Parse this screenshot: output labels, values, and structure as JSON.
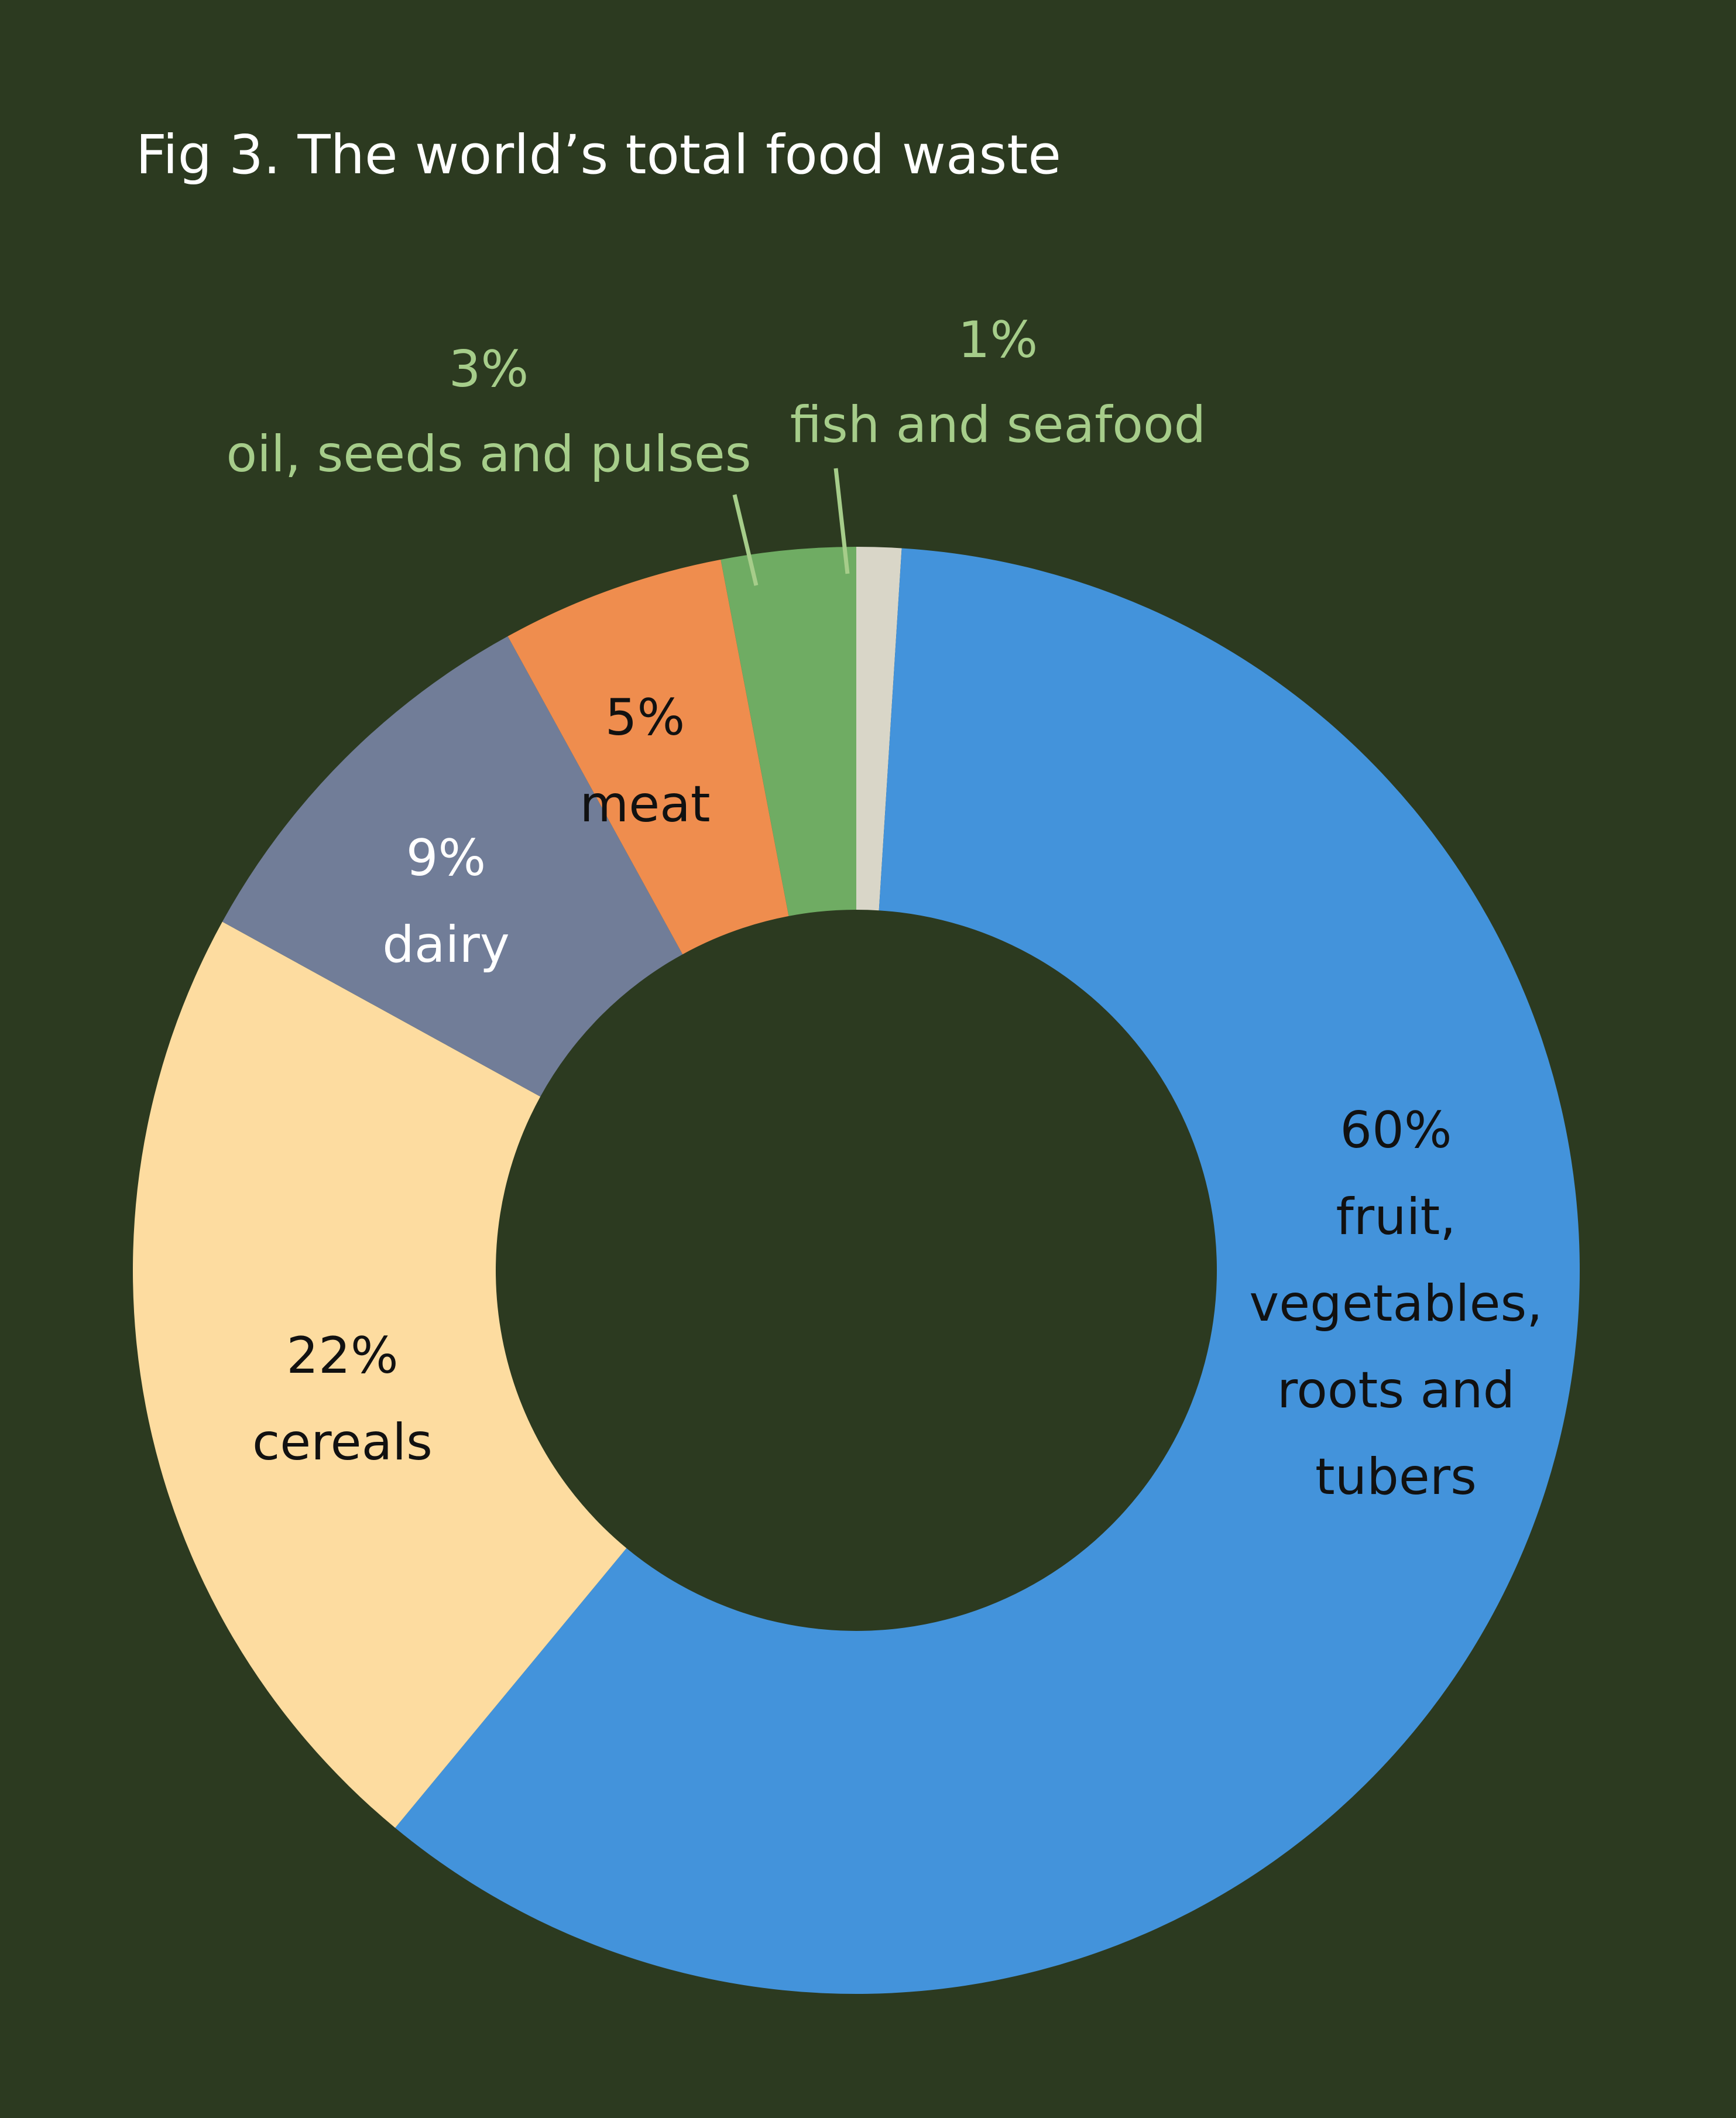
{
  "chart_data": {
    "type": "pie",
    "title": "Fig 3. The world’s total food waste",
    "start": "12 o'clock",
    "direction": "clockwise",
    "hole": "large center hole (donut)",
    "background_color": "#2c3a20",
    "slices": [
      {
        "key": "fish",
        "value": 1,
        "value_label": "1%",
        "lines": [
          "fish and seafood"
        ],
        "color": "#d9d6c8",
        "label_color": "#a6cd8a",
        "label_position": "outside"
      },
      {
        "key": "fruit",
        "value": 60,
        "value_label": "60%",
        "lines": [
          "fruit,",
          "vegetables,",
          "roots and",
          "tubers"
        ],
        "color": "#4393db",
        "label_color": "#111111",
        "label_position": "inside"
      },
      {
        "key": "cereals",
        "value": 22,
        "value_label": "22%",
        "lines": [
          "cereals"
        ],
        "color": "#fddca0",
        "label_color": "#111111",
        "label_position": "inside"
      },
      {
        "key": "dairy",
        "value": 9,
        "value_label": "9%",
        "lines": [
          "dairy"
        ],
        "color": "#717d98",
        "label_color": "#ffffff",
        "label_position": "inside"
      },
      {
        "key": "meat",
        "value": 5,
        "value_label": "5%",
        "lines": [
          "meat"
        ],
        "color": "#ef8d4e",
        "label_color": "#111111",
        "label_position": "inside"
      },
      {
        "key": "oil",
        "value": 3,
        "value_label": "3%",
        "lines": [
          "oil, seeds and pulses"
        ],
        "color": "#6fac63",
        "label_color": "#a6cd8a",
        "label_position": "outside"
      }
    ]
  }
}
